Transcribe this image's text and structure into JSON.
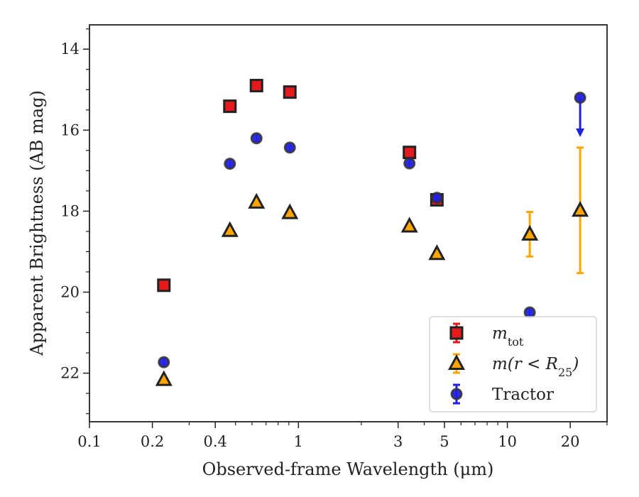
{
  "chart_data": {
    "type": "scatter",
    "xlabel": "Observed-frame Wavelength (μm)",
    "ylabel": "Apparent Brightness (AB mag)",
    "xscale": "log",
    "xlim": [
      0.1,
      30
    ],
    "ylim": [
      23.2,
      13.4
    ],
    "y_inverted": true,
    "grid": false,
    "legend_position": "lower-right",
    "xticks": [
      {
        "value": 0.1,
        "label": "0.1"
      },
      {
        "value": 0.2,
        "label": "0.2"
      },
      {
        "value": 0.4,
        "label": "0.4"
      },
      {
        "value": 1,
        "label": "1"
      },
      {
        "value": 3,
        "label": "3"
      },
      {
        "value": 5,
        "label": "5"
      },
      {
        "value": 10,
        "label": "10"
      },
      {
        "value": 20,
        "label": "20"
      }
    ],
    "yticks": [
      {
        "value": 14,
        "label": "14"
      },
      {
        "value": 16,
        "label": "16"
      },
      {
        "value": 18,
        "label": "18"
      },
      {
        "value": 20,
        "label": "20"
      },
      {
        "value": 22,
        "label": "22"
      }
    ],
    "series": [
      {
        "legend": "m_tot",
        "legend_main": "m",
        "legend_sub": "tot",
        "marker": "square",
        "color": "#e41a1c",
        "edge": "#222222",
        "points": [
          {
            "x": 0.227,
            "y": 19.83
          },
          {
            "x": 0.47,
            "y": 15.41
          },
          {
            "x": 0.63,
            "y": 14.9
          },
          {
            "x": 0.91,
            "y": 15.06
          },
          {
            "x": 3.4,
            "y": 16.55
          },
          {
            "x": 4.6,
            "y": 17.72,
            "yerr": 0.08
          }
        ]
      },
      {
        "legend": "m(r < R25)",
        "legend_main": "m(r < R",
        "legend_sub": "25",
        "legend_tail": ")",
        "marker": "triangle",
        "color": "#ffa500",
        "edge": "#222222",
        "points": [
          {
            "x": 0.227,
            "y": 22.16
          },
          {
            "x": 0.47,
            "y": 18.48
          },
          {
            "x": 0.63,
            "y": 17.78
          },
          {
            "x": 0.91,
            "y": 18.04
          },
          {
            "x": 3.4,
            "y": 18.37
          },
          {
            "x": 4.6,
            "y": 19.05
          },
          {
            "x": 12.8,
            "y": 18.57,
            "yerr": 0.55
          },
          {
            "x": 22.3,
            "y": 17.98,
            "yerr": 1.55
          }
        ]
      },
      {
        "legend": "Tractor",
        "legend_main": "Tractor",
        "marker": "circle",
        "color": "#1f1fe6",
        "edge": "#333333",
        "points": [
          {
            "x": 0.227,
            "y": 21.73
          },
          {
            "x": 0.47,
            "y": 16.83
          },
          {
            "x": 0.63,
            "y": 16.2
          },
          {
            "x": 0.91,
            "y": 16.43
          },
          {
            "x": 3.4,
            "y": 16.82
          },
          {
            "x": 4.6,
            "y": 17.67
          },
          {
            "x": 12.8,
            "y": 20.5
          },
          {
            "x": 22.3,
            "y": 15.2,
            "upper_limit": true
          }
        ]
      }
    ]
  }
}
